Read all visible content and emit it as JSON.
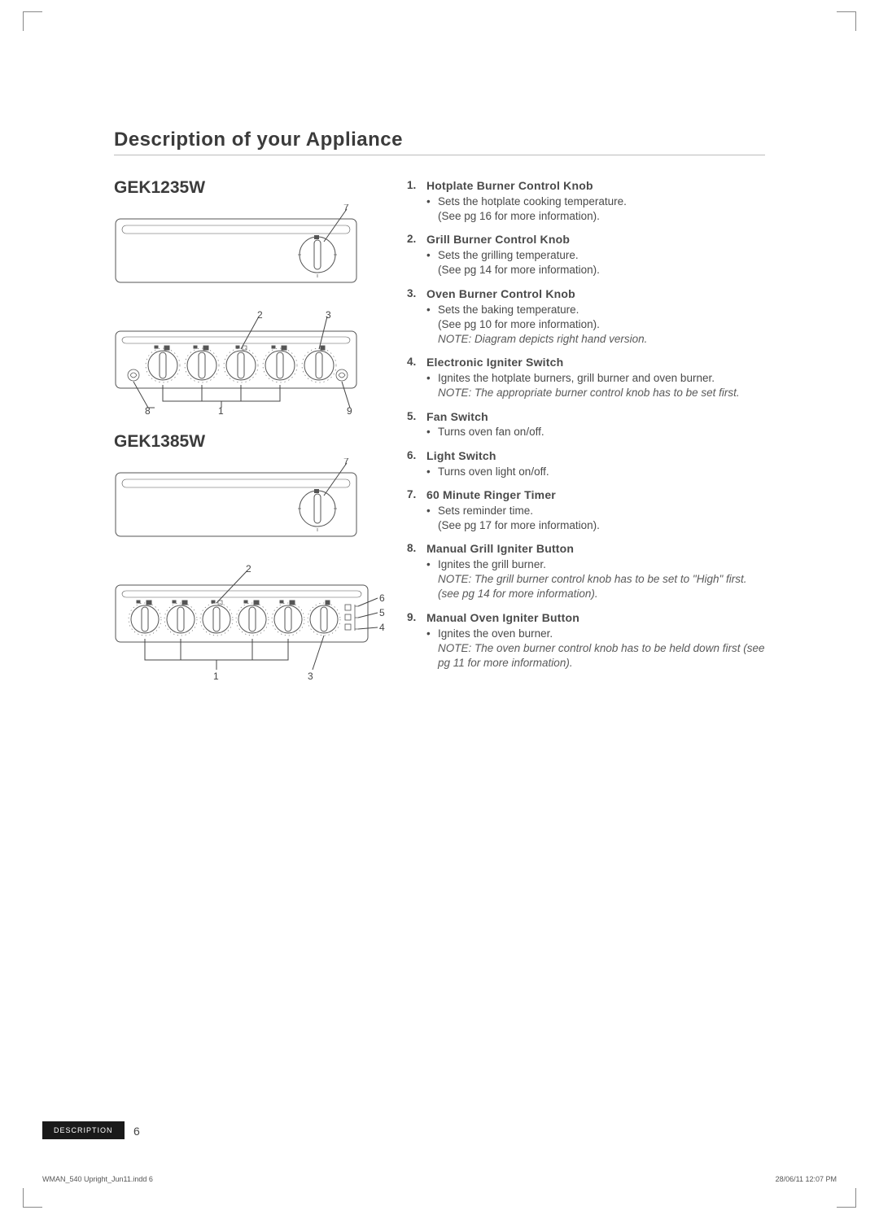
{
  "heading": "Description of your Appliance",
  "models": [
    {
      "id": "GEK1235W"
    },
    {
      "id": "GEK1385W"
    }
  ],
  "controls": [
    {
      "num": "1.",
      "title": "Hotplate Burner Control Knob",
      "text": "Sets the hotplate cooking temperature.",
      "ref": "(See pg 16 for more information).",
      "note": ""
    },
    {
      "num": "2.",
      "title": "Grill Burner Control Knob",
      "text": "Sets the grilling temperature.",
      "ref": "(See pg 14 for more information).",
      "note": ""
    },
    {
      "num": "3.",
      "title": "Oven Burner Control Knob",
      "text": "Sets the baking temperature.",
      "ref": "(See pg 10 for more information).",
      "note": "NOTE: Diagram depicts right hand version."
    },
    {
      "num": "4.",
      "title": "Electronic Igniter Switch",
      "text": "Ignites the hotplate burners, grill burner and oven burner.",
      "ref": "",
      "note": "NOTE: The appropriate burner control knob has to be set first."
    },
    {
      "num": "5.",
      "title": "Fan Switch",
      "text": "Turns oven fan on/off.",
      "ref": "",
      "note": ""
    },
    {
      "num": "6.",
      "title": "Light Switch",
      "text": "Turns oven light on/off.",
      "ref": "",
      "note": ""
    },
    {
      "num": "7.",
      "title": "60 Minute Ringer Timer",
      "text": "Sets reminder time.",
      "ref": "(See pg 17 for more information).",
      "note": ""
    },
    {
      "num": "8.",
      "title": "Manual Grill Igniter Button",
      "text": "Ignites the grill burner.",
      "ref": "",
      "note": "NOTE: The grill burner control knob has to be set to \"High\" first. (see pg 14 for more information)."
    },
    {
      "num": "9.",
      "title": "Manual Oven Igniter Button",
      "text": "Ignites the oven burner.",
      "ref": "",
      "note": "NOTE: The oven burner control knob has to be held down first (see pg 11 for more information)."
    }
  ],
  "footer": {
    "tab": "DESCRIPTION",
    "page": "6",
    "file": "WMAN_540 Upright_Jun11.indd   6",
    "datetime": "28/06/11   12:07 PM"
  },
  "diagram": {
    "panel_stroke": "#555555",
    "panel_fill": "#ffffff",
    "leader_stroke": "#444444",
    "label_color": "#444444",
    "label_fontsize": 12
  }
}
